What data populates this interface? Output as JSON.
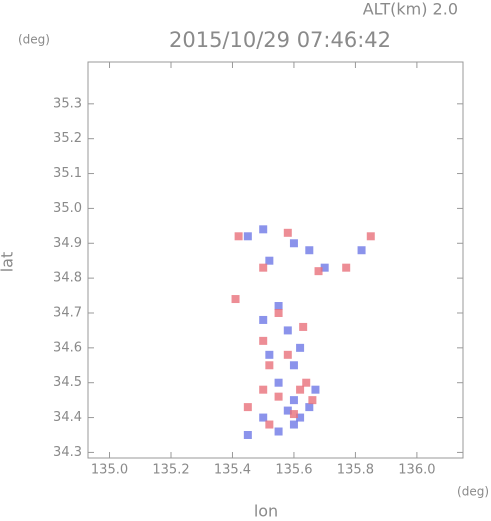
{
  "chart_data": {
    "type": "scatter",
    "title": "2015/10/29 07:46:42",
    "altitude_label": "ALT(km) 2.0",
    "y_unit": "(deg)",
    "x_unit": "(deg)",
    "xlabel": "lon",
    "ylabel": "lat",
    "xlim": [
      134.93,
      136.15
    ],
    "ylim": [
      34.284,
      35.42
    ],
    "xticks": [
      {
        "value": 135.0,
        "label": "135.0"
      },
      135.2,
      135.4,
      135.6,
      135.8,
      {
        "value": 136.0,
        "label": "136.0"
      }
    ],
    "yticks": [
      34.3,
      34.4,
      34.5,
      34.6,
      34.7,
      34.8,
      34.9,
      {
        "value": 35.0,
        "label": "35.0"
      },
      35.1,
      35.2,
      35.3
    ],
    "series": [
      {
        "color": "#6e78e6",
        "x": [
          135.45,
          135.5,
          135.6,
          135.65,
          135.52,
          135.7,
          135.82,
          135.55,
          135.5,
          135.58,
          135.62,
          135.52,
          135.6,
          135.55,
          135.6,
          135.58,
          135.62,
          135.6,
          135.55,
          135.5,
          135.45,
          135.65,
          135.67
        ],
        "y": [
          34.92,
          34.94,
          34.9,
          34.88,
          34.85,
          34.83,
          34.88,
          34.72,
          34.68,
          34.65,
          34.6,
          34.58,
          34.55,
          34.5,
          34.45,
          34.42,
          34.4,
          34.38,
          34.36,
          34.4,
          34.35,
          34.43,
          34.48
        ]
      },
      {
        "color": "#e8707a",
        "x": [
          135.42,
          135.58,
          135.5,
          135.68,
          135.77,
          135.85,
          135.41,
          135.55,
          135.63,
          135.5,
          135.58,
          135.52,
          135.62,
          135.5,
          135.55,
          135.64,
          135.52,
          135.6,
          135.45,
          135.66
        ],
        "y": [
          34.92,
          34.93,
          34.83,
          34.82,
          34.83,
          34.92,
          34.74,
          34.7,
          34.66,
          34.62,
          34.58,
          34.55,
          34.48,
          34.48,
          34.46,
          34.5,
          34.38,
          34.41,
          34.43,
          34.45
        ]
      }
    ]
  }
}
